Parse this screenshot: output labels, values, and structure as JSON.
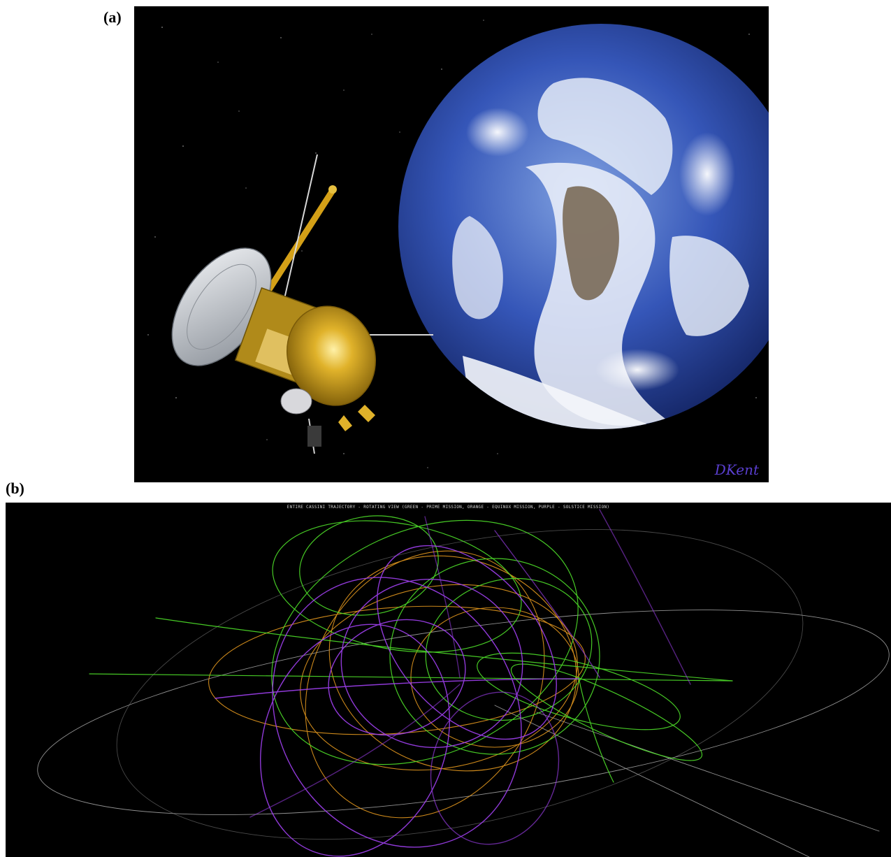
{
  "panels": {
    "a": {
      "label": "(a)",
      "signature": "DKent",
      "colors": {
        "space": "#000000",
        "ocean": "#2a4aa8",
        "clouds": "#eef2fa",
        "land": "#7a6a58",
        "spacecraft_gold": "#d4a017",
        "dish_gray": "#c9cdd3"
      }
    },
    "b": {
      "label": "(b)",
      "title": "ENTIRE CASSINI TRAJECTORY - ROTATING VIEW (GREEN - PRIME MISSION, ORANGE - EQUINOX MISSION, PURPLE - SOLSTICE MISSION)",
      "colors": {
        "prime": "#4fe02a",
        "equinox": "#f0a020",
        "solstice": "#a040f0",
        "outer": "#cfcfcf"
      }
    }
  }
}
